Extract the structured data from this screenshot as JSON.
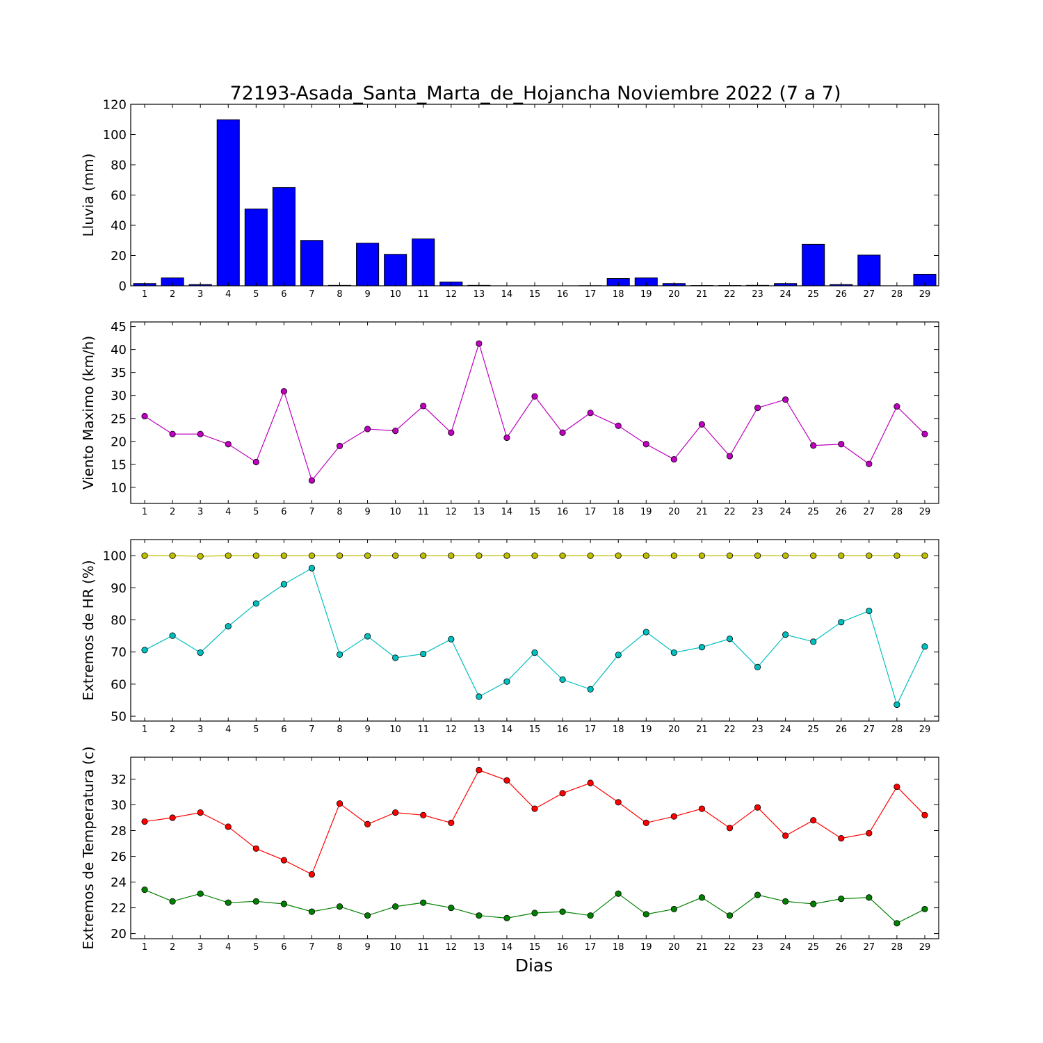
{
  "title": "72193-Asada_Santa_Marta_de_Hojancha Noviembre 2022  (7 a 7)",
  "chart_data": [
    {
      "type": "bar",
      "ylabel": "Lluvia (mm)",
      "xlabel": "",
      "ylim": [
        0,
        120
      ],
      "yticks": [
        0,
        20,
        40,
        60,
        80,
        100,
        120
      ],
      "color": "#0000ff",
      "categories": [
        1,
        2,
        3,
        4,
        5,
        6,
        7,
        8,
        9,
        10,
        11,
        12,
        13,
        14,
        15,
        16,
        17,
        18,
        19,
        20,
        21,
        22,
        23,
        24,
        25,
        26,
        27,
        28,
        29
      ],
      "values": [
        1.5,
        5.2,
        0.8,
        109.8,
        50.8,
        65.0,
        30.0,
        0.3,
        28.2,
        20.8,
        31.0,
        2.5,
        0.3,
        0,
        0,
        0,
        0.1,
        4.8,
        5.2,
        1.5,
        0.2,
        0.2,
        0.3,
        1.5,
        27.4,
        0.8,
        20.3,
        0,
        7.6
      ]
    },
    {
      "type": "line",
      "ylabel": "Viento Maximo (km/h)",
      "xlabel": "",
      "ylim": [
        6.5,
        46
      ],
      "yticks": [
        10,
        15,
        20,
        25,
        30,
        35,
        40,
        45
      ],
      "x": [
        1,
        2,
        3,
        4,
        5,
        6,
        7,
        8,
        9,
        10,
        11,
        12,
        13,
        14,
        15,
        16,
        17,
        18,
        19,
        20,
        21,
        22,
        23,
        24,
        25,
        26,
        27,
        28,
        29
      ],
      "series": [
        {
          "color": "#bf00bf",
          "values": [
            25.5,
            21.6,
            21.6,
            19.4,
            15.5,
            30.9,
            11.5,
            19.0,
            22.7,
            22.3,
            27.7,
            21.9,
            41.3,
            20.8,
            29.8,
            21.9,
            26.2,
            23.4,
            19.4,
            16.1,
            23.7,
            16.8,
            27.3,
            29.1,
            19.1,
            19.4,
            15.1,
            27.6,
            21.6
          ]
        }
      ]
    },
    {
      "type": "line",
      "ylabel": "Extremos de HR (%)",
      "xlabel": "",
      "ylim": [
        48.5,
        105
      ],
      "yticks": [
        50,
        60,
        70,
        80,
        90,
        100
      ],
      "x": [
        1,
        2,
        3,
        4,
        5,
        6,
        7,
        8,
        9,
        10,
        11,
        12,
        13,
        14,
        15,
        16,
        17,
        18,
        19,
        20,
        21,
        22,
        23,
        24,
        25,
        26,
        27,
        28,
        29
      ],
      "series": [
        {
          "color": "#bfbf00",
          "values": [
            100,
            100,
            99.8,
            100,
            100,
            100,
            100,
            100,
            100,
            100,
            100,
            100,
            100,
            100,
            100,
            100,
            100,
            100,
            100,
            100,
            100,
            100,
            100,
            100,
            100,
            100,
            100,
            100,
            100
          ]
        },
        {
          "color": "#00bfbf",
          "values": [
            70.6,
            75.1,
            69.8,
            78.0,
            85.1,
            91.1,
            96.1,
            69.2,
            74.9,
            68.2,
            69.4,
            74.0,
            56.1,
            60.8,
            69.8,
            61.4,
            58.4,
            69.1,
            76.2,
            69.8,
            71.5,
            74.1,
            65.3,
            75.4,
            73.2,
            79.3,
            82.8,
            53.6,
            71.7
          ]
        }
      ]
    },
    {
      "type": "line",
      "ylabel": "Extremos de Temperatura (c)",
      "xlabel": "Dias",
      "ylim": [
        19.6,
        33.7
      ],
      "yticks": [
        20,
        22,
        24,
        26,
        28,
        30,
        32
      ],
      "x": [
        1,
        2,
        3,
        4,
        5,
        6,
        7,
        8,
        9,
        10,
        11,
        12,
        13,
        14,
        15,
        16,
        17,
        18,
        19,
        20,
        21,
        22,
        23,
        24,
        25,
        26,
        27,
        28,
        29
      ],
      "series": [
        {
          "color": "#ff0000",
          "values": [
            28.7,
            29.0,
            29.4,
            28.3,
            26.6,
            25.7,
            24.6,
            30.1,
            28.5,
            29.4,
            29.2,
            28.6,
            32.7,
            31.9,
            29.7,
            30.9,
            31.7,
            30.2,
            28.6,
            29.1,
            29.7,
            28.2,
            29.8,
            27.6,
            28.8,
            27.4,
            27.8,
            31.4,
            29.2
          ]
        },
        {
          "color": "#008000",
          "values": [
            23.4,
            22.5,
            23.1,
            22.4,
            22.5,
            22.3,
            21.7,
            22.1,
            21.4,
            22.1,
            22.4,
            22.0,
            21.4,
            21.2,
            21.6,
            21.7,
            21.4,
            23.1,
            21.5,
            21.9,
            22.8,
            21.4,
            23.0,
            22.5,
            22.3,
            22.7,
            22.8,
            20.8,
            21.9
          ]
        }
      ]
    }
  ]
}
